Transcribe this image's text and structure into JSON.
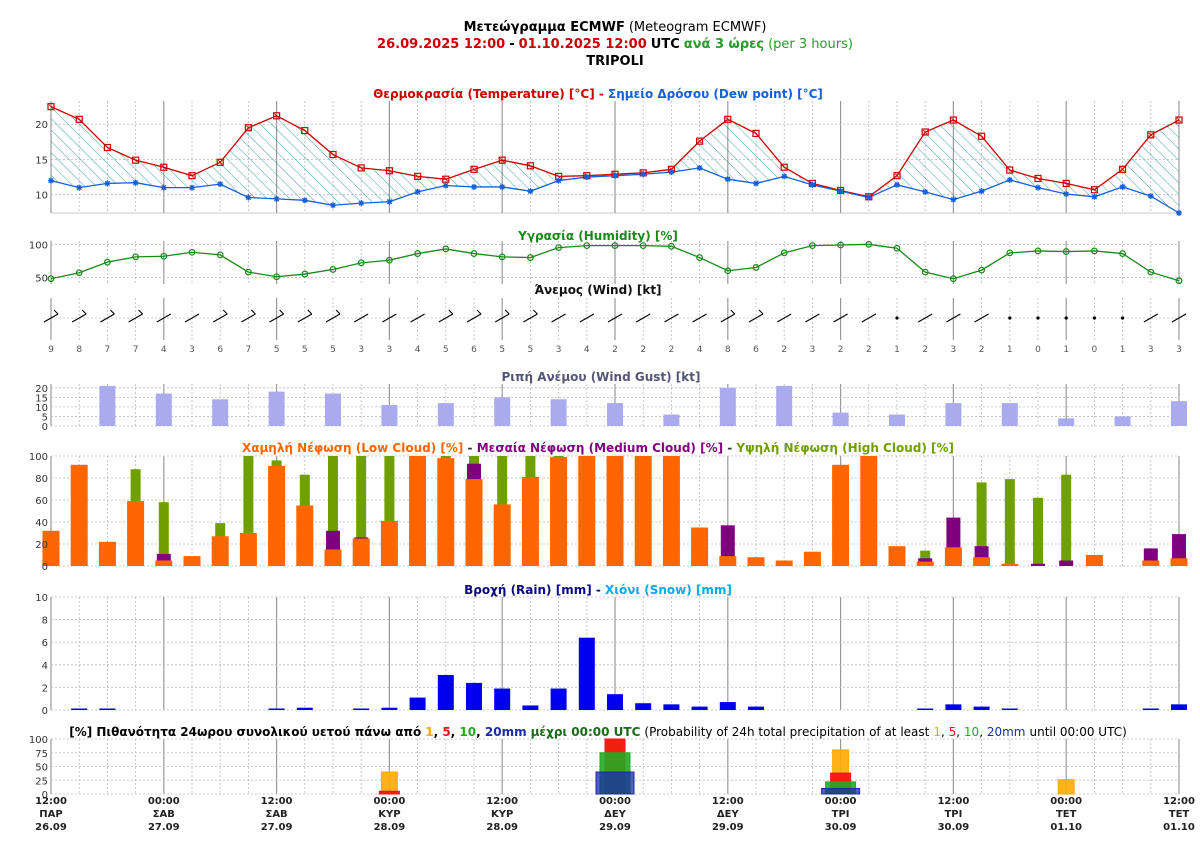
{
  "header": {
    "title_main": "Μετεώγραμμα ECMWF",
    "title_sub": "(Meteogram ECMWF)",
    "period_start": "26.09.2025 12:00",
    "period_sep": "-",
    "period_end": "01.10.2025 12:00",
    "period_utc": "UTC",
    "period_step": "ανά 3 ώρες",
    "period_step_en": "(per 3 hours)",
    "location": "TRIPOLI"
  },
  "colors": {
    "temp": "#cc0000",
    "dew": "#1560d8",
    "humidity": "#1a8a1a",
    "gust": "#aaaaee",
    "low_cloud": "#ff6600",
    "medium_cloud": "#7f007f",
    "high_cloud": "#6fa000",
    "rain": "#0000ee",
    "snow": "#00aaee",
    "p1": "#ffaa00",
    "p5": "#ee1111",
    "p10": "#22aa22",
    "p20": "#1a2aaa"
  },
  "panels": {
    "temperature": {
      "title_a": "Θερμοκρασία (Temperature) [°C]",
      "title_sep": " - ",
      "title_b": "Σημείο Δρόσου (Dew point) [°C]",
      "ticks": [
        "10",
        "15",
        "20"
      ]
    },
    "humidity": {
      "title": "Υγρασία (Humidity) [%]",
      "ticks": [
        "50",
        "100"
      ]
    },
    "wind": {
      "title": "Άνεμος (Wind) [kt]"
    },
    "gust": {
      "title": "Ριπή Ανέμου (Wind Gust) [kt]",
      "ticks": [
        "0",
        "5",
        "10",
        "15",
        "20"
      ]
    },
    "cloud": {
      "title_low": "Χαμηλή Νέφωση (Low Cloud) [%]",
      "title_medium": "Μεσαία Νέφωση (Medium Cloud) [%]",
      "title_high": "Υψηλή Νέφωση (High Cloud) [%]",
      "sep": " - ",
      "ticks": [
        "0",
        "20",
        "40",
        "60",
        "80",
        "100"
      ]
    },
    "rain": {
      "title_rain": "Βροχή (Rain) [mm]",
      "title_sep": " - ",
      "title_snow": "Χιόνι (Snow) [mm]",
      "ticks": [
        "0",
        "2",
        "4",
        "6",
        "8",
        "10"
      ]
    },
    "probability": {
      "title_gr": "[%] Πιθανότητα 24ωρου συνολικού υετού πάνω από",
      "t1": "1",
      "t5": "5",
      "t10": "10",
      "t20": "20mm",
      "title_until": "μέχρι 00:00 UTC",
      "title_en": "(Probability of 24h total precipitation of at least",
      "en_t1": "1",
      "en_t5": "5",
      "en_t10": "10",
      "en_t20": "20mm",
      "en_until": "until 00:00 UTC)",
      "sep": ", ",
      "ticks": [
        "0",
        "25",
        "50",
        "75",
        "100"
      ]
    }
  },
  "time_axis": [
    {
      "time": "12:00",
      "day": "ΠΑΡ",
      "date": "26.09"
    },
    {
      "time": "00:00",
      "day": "ΣΑΒ",
      "date": "27.09"
    },
    {
      "time": "12:00",
      "day": "ΣΑΒ",
      "date": "27.09"
    },
    {
      "time": "00:00",
      "day": "ΚΥΡ",
      "date": "28.09"
    },
    {
      "time": "12:00",
      "day": "ΚΥΡ",
      "date": "28.09"
    },
    {
      "time": "00:00",
      "day": "ΔΕΥ",
      "date": "29.09"
    },
    {
      "time": "12:00",
      "day": "ΔΕΥ",
      "date": "29.09"
    },
    {
      "time": "00:00",
      "day": "ΤΡΙ",
      "date": "30.09"
    },
    {
      "time": "12:00",
      "day": "ΤΡΙ",
      "date": "30.09"
    },
    {
      "time": "00:00",
      "day": "ΤΕΤ",
      "date": "01.10"
    },
    {
      "time": "12:00",
      "day": "ΤΕΤ",
      "date": "01.10"
    }
  ],
  "chart_data": {
    "type": "line",
    "x_start": "26.09.2025 12:00 UTC",
    "x_step": "3 hours",
    "temperature": [
      22.5,
      20.7,
      16.7,
      14.9,
      13.9,
      12.7,
      14.6,
      19.5,
      21.2,
      19.1,
      15.7,
      13.8,
      13.4,
      12.6,
      12.2,
      13.6,
      14.9,
      14.1,
      12.6,
      12.7,
      12.9,
      13.1,
      13.6,
      17.6,
      20.7,
      18.7,
      13.9,
      11.6,
      10.6,
      9.7,
      12.7,
      18.9,
      20.6,
      18.3,
      13.5,
      12.3,
      11.6,
      10.7,
      13.6,
      18.5,
      20.6
    ],
    "dew_point": [
      12.0,
      11.0,
      11.6,
      11.7,
      11.0,
      11.0,
      11.5,
      9.6,
      9.4,
      9.2,
      8.5,
      8.8,
      9.0,
      10.4,
      11.3,
      11.1,
      11.1,
      10.5,
      12.0,
      12.5,
      12.7,
      12.9,
      13.2,
      13.8,
      12.2,
      11.6,
      12.6,
      11.4,
      10.5,
      9.6,
      11.4,
      10.4,
      9.3,
      10.5,
      12.1,
      11.0,
      10.1,
      9.7,
      11.1,
      9.8,
      7.4
    ],
    "humidity": [
      48,
      57,
      73,
      81,
      82,
      88,
      84,
      58,
      51,
      55,
      62,
      72,
      76,
      86,
      93,
      86,
      81,
      80,
      95,
      98,
      98,
      98,
      97,
      80,
      60,
      65,
      87,
      98,
      99,
      100,
      94,
      58,
      48,
      61,
      87,
      90,
      89,
      90,
      86,
      58,
      45
    ],
    "wind_speed": [
      9,
      8,
      7,
      7,
      4,
      3,
      6,
      7,
      5,
      5,
      5,
      3,
      3,
      4,
      5,
      6,
      5,
      5,
      3,
      4,
      2,
      2,
      2,
      4,
      8,
      6,
      2,
      3,
      2,
      2,
      1,
      2,
      3,
      2,
      1,
      0,
      1,
      0,
      1,
      3,
      3
    ],
    "wind_gust_x_index": [
      2,
      4,
      6,
      8,
      10,
      12,
      14,
      16,
      18,
      20,
      22,
      24,
      26,
      28,
      30,
      32,
      34,
      36,
      38,
      40
    ],
    "wind_gust": [
      21,
      17,
      14,
      18,
      17,
      11,
      12,
      15,
      14,
      12,
      6,
      20,
      21,
      7,
      6,
      12,
      12,
      4,
      5,
      13
    ],
    "cloud_x_index": [
      0,
      1,
      2,
      3,
      4,
      5,
      6,
      7,
      8,
      9,
      10,
      11,
      12,
      13,
      14,
      15,
      16,
      17,
      18,
      19,
      20,
      21,
      22,
      23,
      24,
      25,
      26,
      27,
      28,
      29,
      30,
      31,
      32,
      33,
      34,
      35,
      36,
      37,
      38,
      39,
      40
    ],
    "low_cloud": [
      32,
      92,
      22,
      59,
      5,
      9,
      27,
      30,
      91,
      55,
      15,
      25,
      41,
      100,
      98,
      79,
      56,
      81,
      99,
      100,
      100,
      100,
      100,
      35,
      9,
      8,
      5,
      13,
      92,
      100,
      18,
      4,
      17,
      8,
      2,
      0,
      0,
      10,
      0,
      5,
      7
    ],
    "medium_cloud": [
      0,
      0,
      0,
      0,
      11,
      0,
      0,
      0,
      0,
      0,
      32,
      26,
      0,
      0,
      0,
      93,
      0,
      0,
      0,
      0,
      0,
      0,
      0,
      0,
      37,
      0,
      0,
      0,
      0,
      0,
      0,
      7,
      44,
      18,
      0,
      2,
      5,
      0,
      0,
      16,
      29
    ],
    "high_cloud": [
      0,
      0,
      0,
      88,
      58,
      0,
      39,
      100,
      96,
      83,
      100,
      100,
      100,
      100,
      100,
      100,
      100,
      100,
      100,
      0,
      0,
      0,
      0,
      0,
      0,
      0,
      0,
      0,
      0,
      0,
      0,
      14,
      17,
      76,
      79,
      62,
      83,
      0,
      0,
      0,
      0
    ],
    "rain_x_index": [
      1,
      2,
      8,
      9,
      11,
      12,
      13,
      14,
      15,
      16,
      17,
      18,
      19,
      20,
      21,
      22,
      23,
      24,
      25,
      31,
      32,
      33,
      34,
      39,
      40
    ],
    "rain": [
      0.1,
      0.1,
      0.1,
      0.2,
      0.1,
      0.2,
      1.1,
      3.1,
      2.4,
      1.9,
      0.4,
      1.9,
      6.4,
      1.4,
      0.6,
      0.5,
      0.3,
      0.7,
      0.3,
      0.1,
      0.5,
      0.3,
      0.1,
      0.1,
      0.5
    ],
    "snow": [],
    "precip_probability_dates": [
      "28.09",
      "29.09",
      "30.09",
      "01.10"
    ],
    "precip_probability_x_index": [
      12,
      20,
      28,
      36
    ],
    "prob_1mm": [
      40,
      100,
      80,
      26
    ],
    "prob_5mm": [
      5,
      100,
      38,
      0
    ],
    "prob_10mm": [
      0,
      75,
      22,
      0
    ],
    "prob_20mm": [
      0,
      40,
      10,
      0
    ],
    "ylim_temperature": [
      7.4,
      23.3
    ],
    "ylim_humidity": [
      40,
      105
    ],
    "ylim_gust": [
      0,
      22
    ],
    "ylim_cloud": [
      0,
      100
    ],
    "ylim_rain": [
      0,
      10
    ],
    "ylim_probability": [
      0,
      100
    ]
  }
}
